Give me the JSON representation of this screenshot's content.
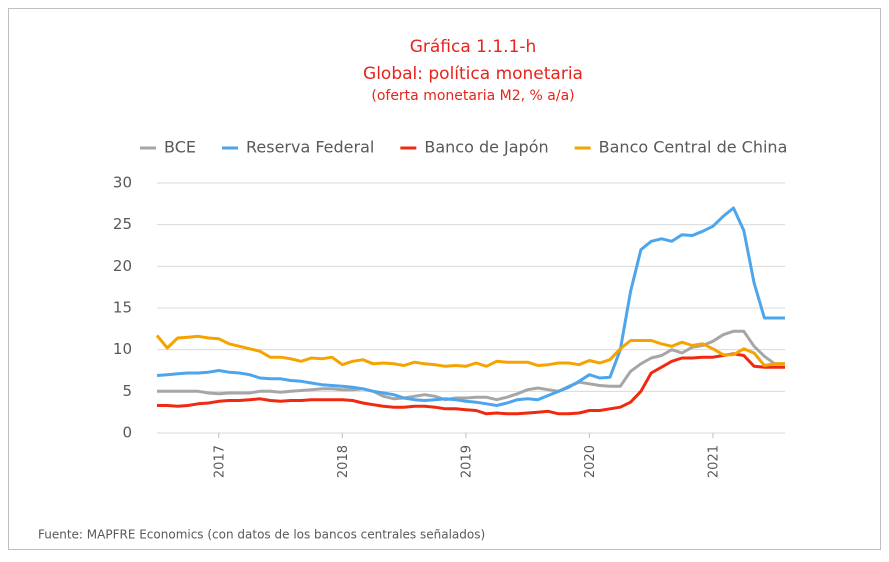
{
  "chart_data": {
    "type": "line",
    "title": "Gráfica 1.1.1-h",
    "subtitle": "Global: política monetaria",
    "subtitle2": "(oferta monetaria M2, % a/a)",
    "source": "Fuente: MAPFRE Economics (con datos de los bancos centrales señalados)",
    "categories": [
      null,
      null,
      null,
      null,
      null,
      null,
      "2017",
      null,
      null,
      null,
      null,
      null,
      null,
      null,
      null,
      null,
      null,
      null,
      "2018",
      null,
      null,
      null,
      null,
      null,
      null,
      null,
      null,
      null,
      null,
      null,
      "2019",
      null,
      null,
      null,
      null,
      null,
      null,
      null,
      null,
      null,
      null,
      null,
      "2020",
      null,
      null,
      null,
      null,
      null,
      null,
      null,
      null,
      null,
      null,
      null,
      "2021",
      null,
      null,
      null,
      null,
      null,
      null,
      null
    ],
    "series": [
      {
        "name": "BCE",
        "color": "#a6a6a6",
        "values": [
          5.0,
          5.0,
          5.0,
          5.0,
          5.0,
          4.8,
          4.7,
          4.8,
          4.8,
          4.8,
          5.0,
          5.0,
          4.9,
          5.0,
          5.1,
          5.2,
          5.3,
          5.3,
          5.2,
          5.2,
          5.3,
          5.0,
          4.4,
          4.1,
          4.2,
          4.4,
          4.6,
          4.4,
          4.0,
          4.2,
          4.2,
          4.3,
          4.3,
          4.0,
          4.3,
          4.7,
          5.2,
          5.4,
          5.2,
          5.0,
          5.6,
          6.1,
          5.9,
          5.7,
          5.6,
          5.6,
          7.4,
          8.3,
          9.0,
          9.3,
          10.0,
          9.6,
          10.3,
          10.5,
          11.0,
          11.8,
          12.2,
          12.2,
          10.4,
          9.2,
          8.3,
          8.3
        ]
      },
      {
        "name": "Reserva Federal",
        "color": "#4da6ec",
        "values": [
          6.9,
          7.0,
          7.1,
          7.2,
          7.2,
          7.3,
          7.5,
          7.3,
          7.2,
          7.0,
          6.6,
          6.5,
          6.5,
          6.3,
          6.2,
          6.0,
          5.8,
          5.7,
          5.6,
          5.5,
          5.3,
          5.0,
          4.8,
          4.6,
          4.2,
          4.0,
          3.9,
          4.0,
          4.1,
          4.0,
          3.8,
          3.7,
          3.5,
          3.3,
          3.6,
          4.0,
          4.1,
          4.0,
          4.5,
          5.0,
          5.5,
          6.2,
          7.0,
          6.6,
          6.7,
          10.0,
          17.0,
          22.0,
          23.0,
          23.3,
          23.0,
          23.8,
          23.7,
          24.2,
          24.8,
          26.0,
          27.0,
          24.3,
          18.0,
          13.8,
          13.8,
          13.8
        ]
      },
      {
        "name": "Banco de Japón",
        "color": "#f02a10",
        "values": [
          3.3,
          3.3,
          3.2,
          3.3,
          3.5,
          3.6,
          3.8,
          3.9,
          3.9,
          4.0,
          4.1,
          3.9,
          3.8,
          3.9,
          3.9,
          4.0,
          4.0,
          4.0,
          4.0,
          3.9,
          3.6,
          3.4,
          3.2,
          3.1,
          3.1,
          3.2,
          3.2,
          3.1,
          2.9,
          2.9,
          2.8,
          2.7,
          2.3,
          2.4,
          2.3,
          2.3,
          2.4,
          2.5,
          2.6,
          2.3,
          2.3,
          2.4,
          2.7,
          2.7,
          2.9,
          3.1,
          3.7,
          5.0,
          7.2,
          7.9,
          8.6,
          9.0,
          9.0,
          9.1,
          9.1,
          9.3,
          9.5,
          9.3,
          8.0,
          7.9,
          7.9,
          7.9
        ]
      },
      {
        "name": "Banco Central de China",
        "color": "#f5a300",
        "values": [
          11.7,
          10.2,
          11.4,
          11.5,
          11.6,
          11.4,
          11.3,
          10.7,
          10.4,
          10.1,
          9.8,
          9.1,
          9.1,
          8.9,
          8.6,
          9.0,
          8.9,
          9.1,
          8.2,
          8.6,
          8.8,
          8.3,
          8.4,
          8.3,
          8.1,
          8.5,
          8.3,
          8.2,
          8.0,
          8.1,
          8.0,
          8.4,
          8.0,
          8.6,
          8.5,
          8.5,
          8.5,
          8.1,
          8.2,
          8.4,
          8.4,
          8.2,
          8.7,
          8.4,
          8.8,
          10.1,
          11.1,
          11.1,
          11.1,
          10.7,
          10.4,
          10.9,
          10.5,
          10.7,
          10.1,
          9.4,
          9.4,
          10.1,
          9.6,
          8.1,
          8.3,
          8.3
        ]
      }
    ],
    "ylim": [
      0,
      30
    ],
    "yticks": [
      0,
      5,
      10,
      15,
      20,
      25,
      30
    ],
    "grid": true,
    "legend": "top"
  }
}
